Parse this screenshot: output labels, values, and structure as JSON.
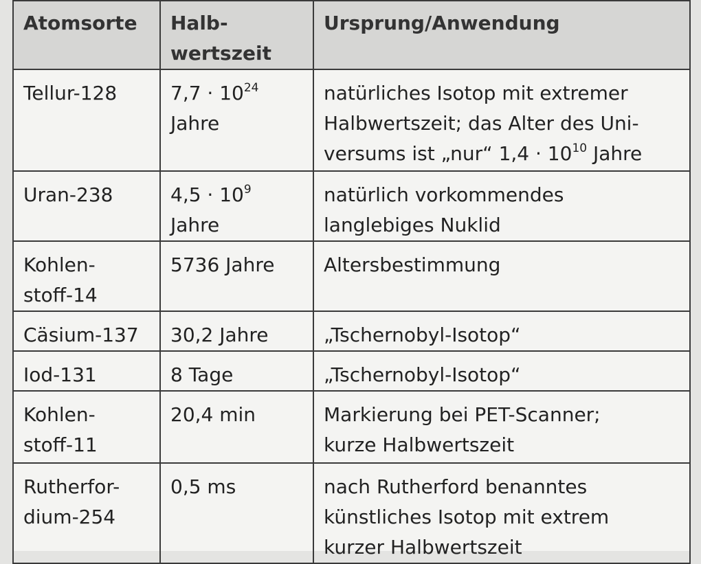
{
  "table": {
    "header": [
      [
        "Atomsorte"
      ],
      [
        "Halb-",
        "wertszeit"
      ],
      [
        "Ursprung/Anwendung"
      ]
    ],
    "rows": [
      [
        [
          "Tellur-128"
        ],
        [
          [
            "7,7 · 10",
            {
              "sup": "24"
            }
          ],
          "Jahre"
        ],
        [
          "natürliches Isotop mit extremer",
          "Halbwertszeit; das Alter des Uni-",
          [
            "versums ist „nur“ 1,4 · 10",
            {
              "sup": "10"
            },
            " Jahre"
          ]
        ]
      ],
      [
        [
          "Uran-238"
        ],
        [
          [
            "4,5 · 10",
            {
              "sup": "9"
            }
          ],
          "Jahre"
        ],
        [
          "natürlich vorkommendes",
          "langlebiges Nuklid"
        ]
      ],
      [
        [
          "Kohlen-",
          "stoff-14"
        ],
        [
          "5736 Jahre"
        ],
        [
          "Altersbestimmung"
        ]
      ],
      [
        [
          "Cäsium-137"
        ],
        [
          "30,2 Jahre"
        ],
        [
          "„Tschernobyl-Isotop“"
        ]
      ],
      [
        [
          "Iod-131"
        ],
        [
          "8 Tage"
        ],
        [
          "„Tschernobyl-Isotop“"
        ]
      ],
      [
        [
          "Kohlen-",
          "stoff-11"
        ],
        [
          "20,4 min"
        ],
        [
          "Markierung bei PET-Scanner;",
          "kurze Halbwertszeit"
        ]
      ],
      [
        [
          "Rutherfor-",
          "dium-254"
        ],
        [
          "0,5 ms"
        ],
        [
          "nach Rutherford benanntes",
          "künstliches Isotop mit extrem",
          "kurzer Halbwertszeit"
        ]
      ]
    ]
  }
}
